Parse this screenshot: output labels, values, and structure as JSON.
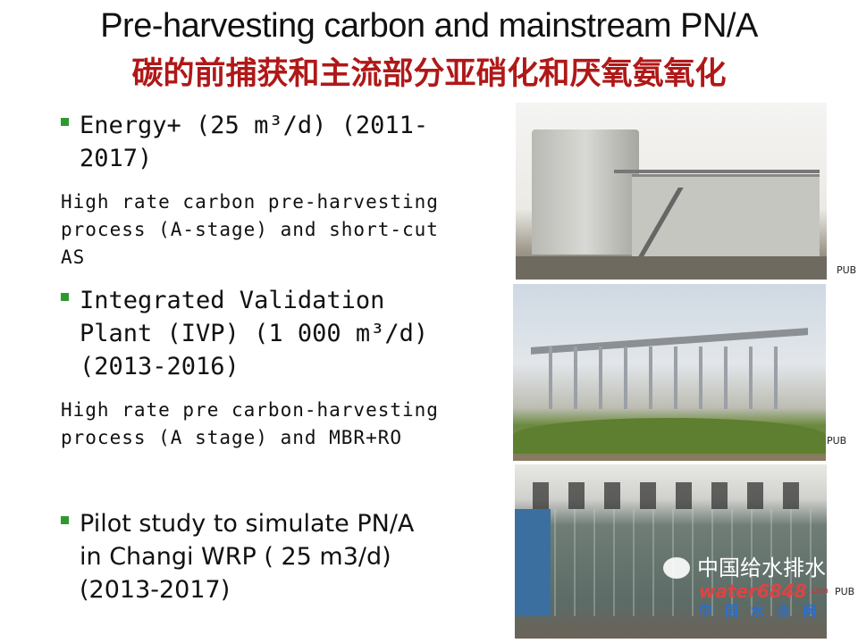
{
  "title": "Pre-harvesting carbon and mainstream PN/A",
  "subtitle": "碳的前捕获和主流部分亚硝化和厌氧氨氧化",
  "items": [
    {
      "heading_lines": [
        "Energy+ (25 m³/d) (2011-",
        "2017)"
      ],
      "description_lines": [
        "High rate carbon pre-harvesting",
        "process (A-stage) and short-cut",
        "AS"
      ]
    },
    {
      "heading_lines": [
        "Integrated Validation",
        "Plant (IVP) (1 000 m³/d)",
        "(2013-2016)"
      ],
      "description_lines": [
        "High rate pre carbon-harvesting",
        "process (A stage) and MBR+RO"
      ]
    },
    {
      "heading_lines": [
        "Pilot study to simulate PN/A",
        "in Changi WRP ( 25 m3/d)",
        "(2013-2017)"
      ]
    }
  ],
  "photo_credits": [
    "PUB",
    "PUB",
    "PUB"
  ],
  "colors": {
    "bullet": "#2e9a2e",
    "subtitle": "#b01818"
  },
  "watermark": {
    "line1": "中国给水排水",
    "brand": "water6848",
    "domain": ".com",
    "line2": "中国水业网"
  }
}
